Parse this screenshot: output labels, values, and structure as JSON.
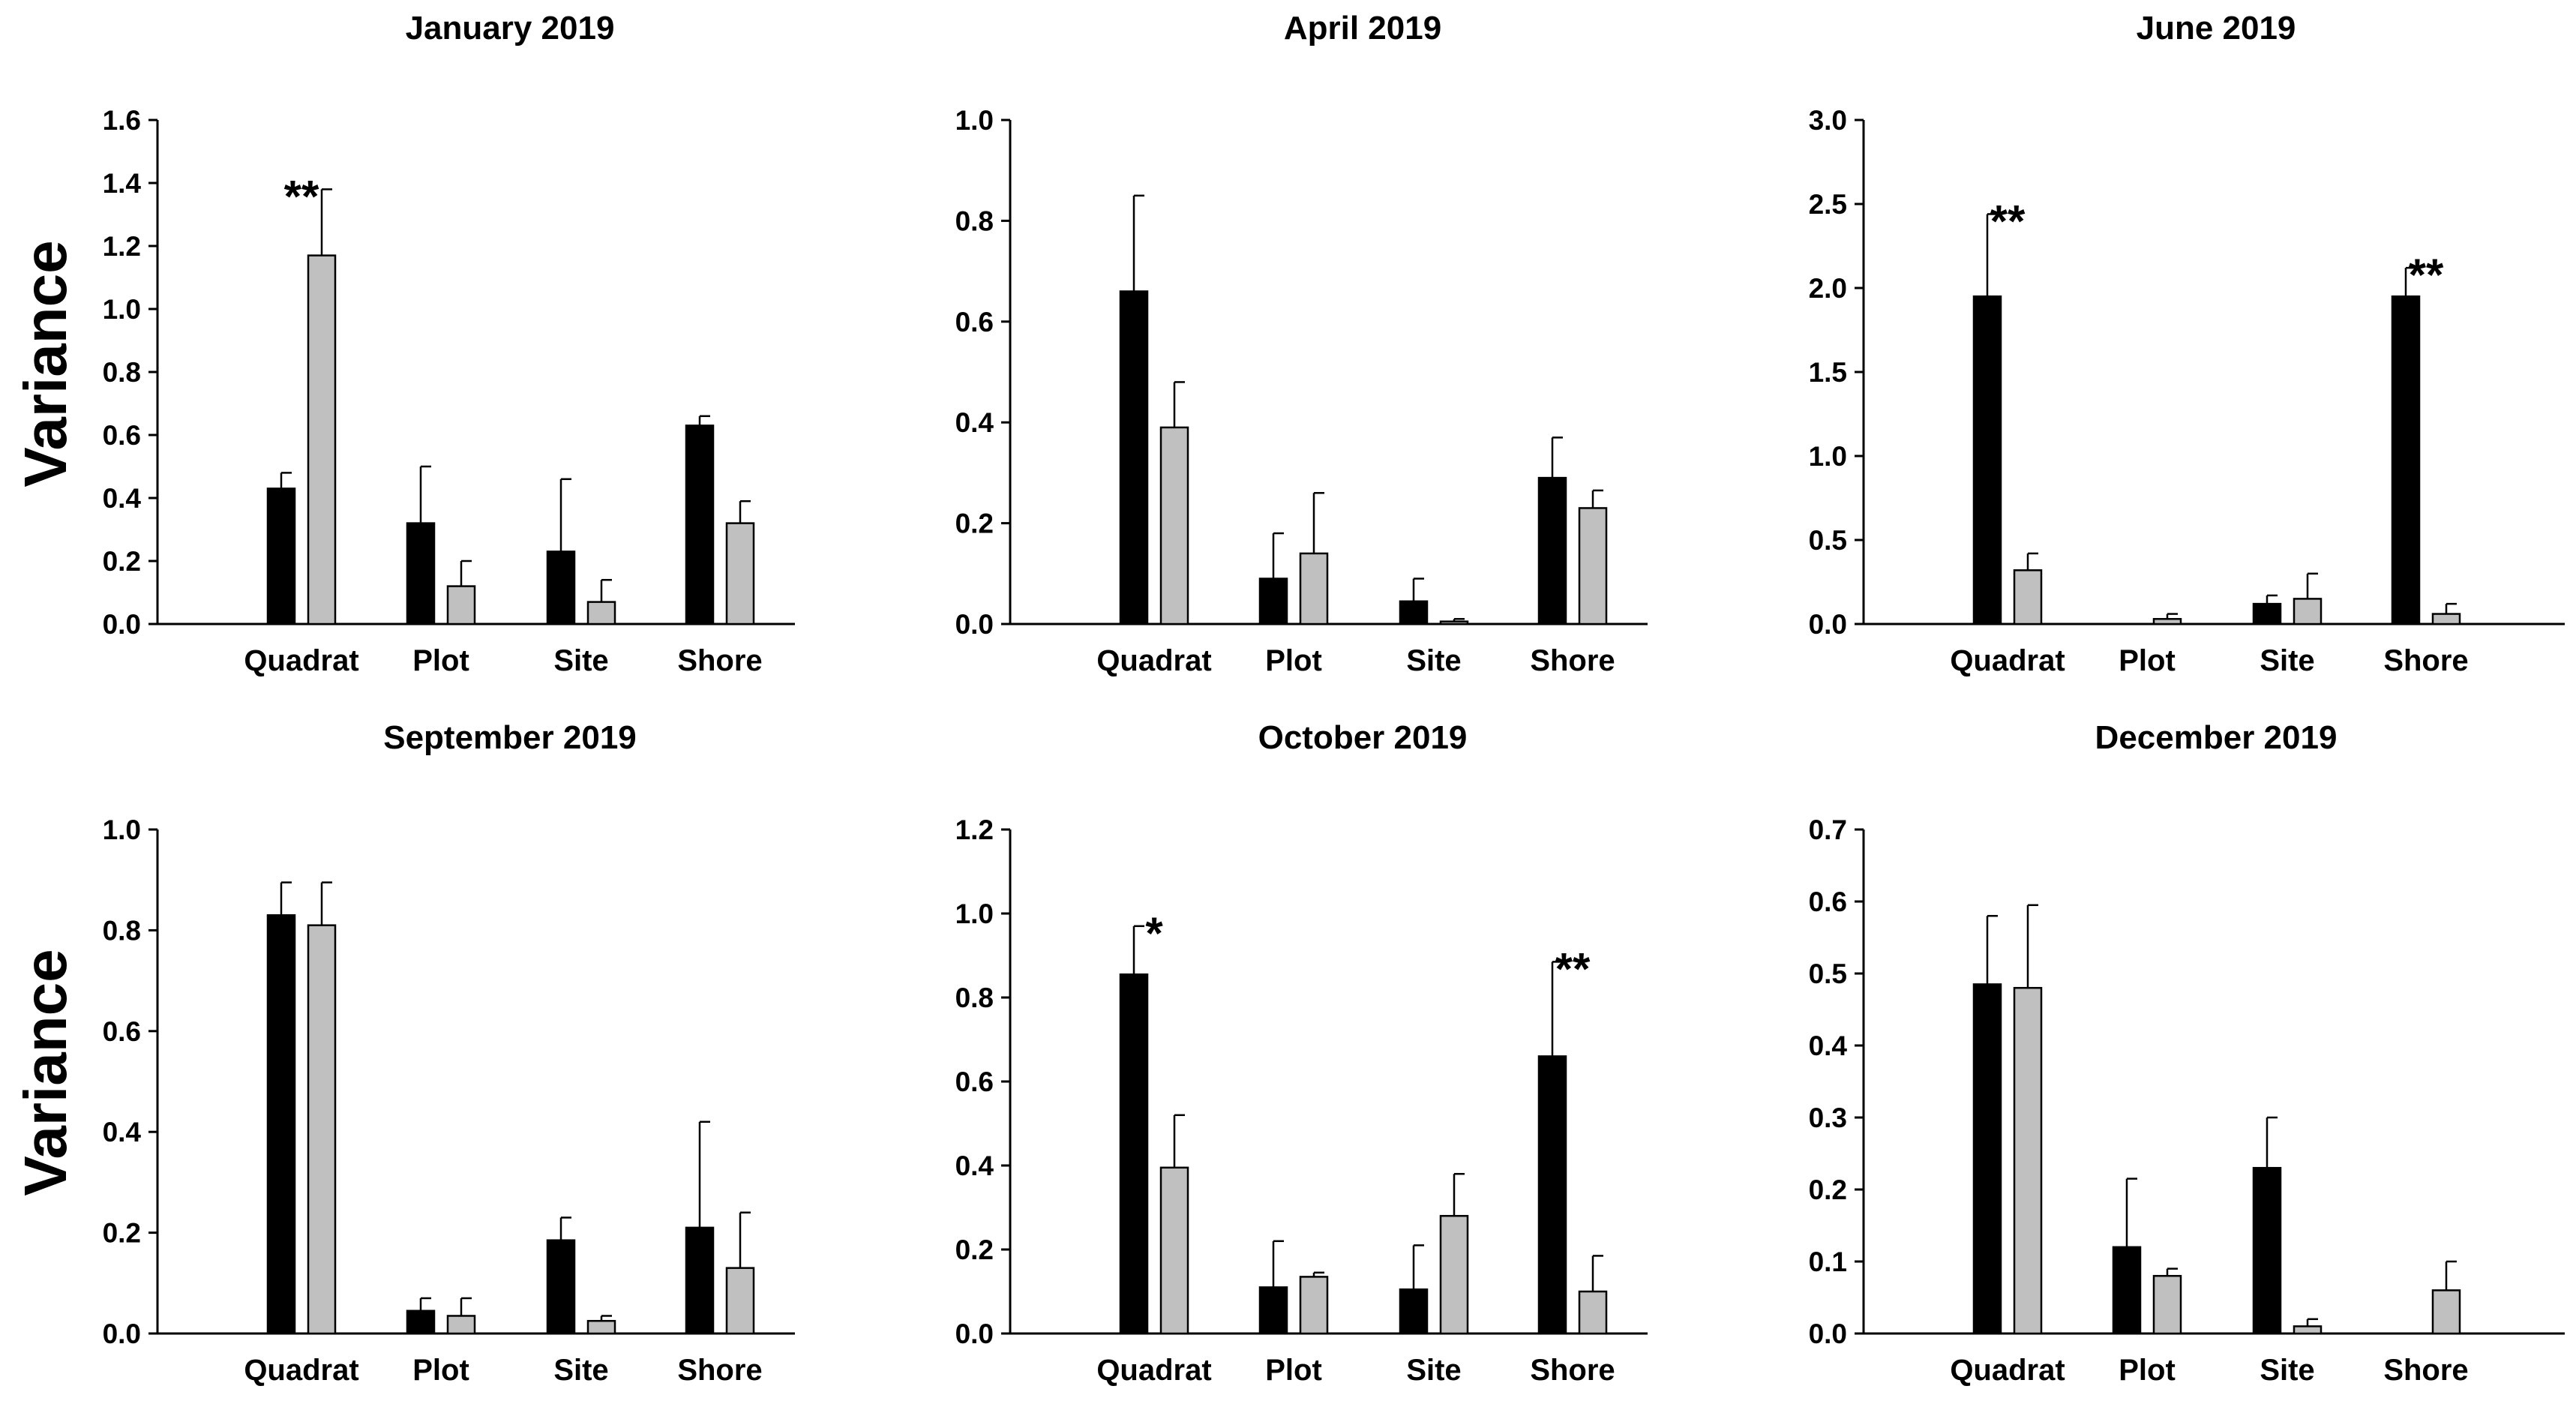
{
  "series_colors": {
    "black": "#000000",
    "grey": "#c0c0c0"
  },
  "chart_data": [
    {
      "type": "bar",
      "title": "January 2019",
      "ylabel": "Variance",
      "categories": [
        "Quadrat",
        "Plot",
        "Site",
        "Shore"
      ],
      "yticks": [
        "0.0",
        "0.2",
        "0.4",
        "0.6",
        "0.8",
        "1.0",
        "1.2",
        "1.4",
        "1.6"
      ],
      "ylim": [
        0,
        1.6
      ],
      "series": [
        {
          "name": "black",
          "values": [
            0.43,
            0.32,
            0.23,
            0.63
          ],
          "errors": [
            0.05,
            0.18,
            0.23,
            0.03
          ]
        },
        {
          "name": "grey",
          "values": [
            1.17,
            0.12,
            0.07,
            0.32
          ],
          "errors": [
            0.21,
            0.08,
            0.07,
            0.07
          ]
        }
      ],
      "annotations": [
        {
          "text": "**",
          "category": 0
        }
      ]
    },
    {
      "type": "bar",
      "title": "April 2019",
      "ylabel": "",
      "categories": [
        "Quadrat",
        "Plot",
        "Site",
        "Shore"
      ],
      "yticks": [
        "0.0",
        "0.2",
        "0.4",
        "0.6",
        "0.8",
        "1.0"
      ],
      "ylim": [
        0,
        1.0
      ],
      "series": [
        {
          "name": "black",
          "values": [
            0.66,
            0.09,
            0.045,
            0.29
          ],
          "errors": [
            0.19,
            0.09,
            0.045,
            0.08
          ]
        },
        {
          "name": "grey",
          "values": [
            0.39,
            0.14,
            0.005,
            0.23
          ],
          "errors": [
            0.09,
            0.12,
            0.005,
            0.035
          ]
        }
      ],
      "annotations": []
    },
    {
      "type": "bar",
      "title": "June 2019",
      "ylabel": "",
      "categories": [
        "Quadrat",
        "Plot",
        "Site",
        "Shore"
      ],
      "yticks": [
        "0.0",
        "0.5",
        "1.0",
        "1.5",
        "2.0",
        "2.5",
        "3.0"
      ],
      "ylim": [
        0,
        3.0
      ],
      "series": [
        {
          "name": "black",
          "values": [
            1.95,
            0.0,
            0.12,
            1.95
          ],
          "errors": [
            0.49,
            0.0,
            0.05,
            0.17
          ]
        },
        {
          "name": "grey",
          "values": [
            0.32,
            0.03,
            0.15,
            0.06
          ],
          "errors": [
            0.1,
            0.03,
            0.15,
            0.06
          ]
        }
      ],
      "annotations": [
        {
          "text": "**",
          "category": 0
        },
        {
          "text": "**",
          "category": 3
        }
      ]
    },
    {
      "type": "bar",
      "title": "September 2019",
      "ylabel": "Variance",
      "categories": [
        "Quadrat",
        "Plot",
        "Site",
        "Shore"
      ],
      "yticks": [
        "0.0",
        "0.2",
        "0.4",
        "0.6",
        "0.8",
        "1.0"
      ],
      "ylim": [
        0,
        1.0
      ],
      "series": [
        {
          "name": "black",
          "values": [
            0.83,
            0.045,
            0.185,
            0.21
          ],
          "errors": [
            0.065,
            0.025,
            0.045,
            0.21
          ]
        },
        {
          "name": "grey",
          "values": [
            0.81,
            0.035,
            0.025,
            0.13
          ],
          "errors": [
            0.085,
            0.035,
            0.01,
            0.11
          ]
        }
      ],
      "annotations": []
    },
    {
      "type": "bar",
      "title": "October 2019",
      "ylabel": "",
      "categories": [
        "Quadrat",
        "Plot",
        "Site",
        "Shore"
      ],
      "yticks": [
        "0.0",
        "0.2",
        "0.4",
        "0.6",
        "0.8",
        "1.0",
        "1.2"
      ],
      "ylim": [
        0,
        1.2
      ],
      "series": [
        {
          "name": "black",
          "values": [
            0.855,
            0.11,
            0.105,
            0.66
          ],
          "errors": [
            0.115,
            0.11,
            0.105,
            0.225
          ]
        },
        {
          "name": "grey",
          "values": [
            0.395,
            0.135,
            0.28,
            0.1
          ],
          "errors": [
            0.125,
            0.01,
            0.1,
            0.085
          ]
        }
      ],
      "annotations": [
        {
          "text": "*",
          "category": 0
        },
        {
          "text": "**",
          "category": 3
        }
      ]
    },
    {
      "type": "bar",
      "title": "December 2019",
      "ylabel": "",
      "categories": [
        "Quadrat",
        "Plot",
        "Site",
        "Shore"
      ],
      "yticks": [
        "0.0",
        "0.1",
        "0.2",
        "0.3",
        "0.4",
        "0.5",
        "0.6",
        "0.7"
      ],
      "ylim": [
        0,
        0.7
      ],
      "series": [
        {
          "name": "black",
          "values": [
            0.485,
            0.12,
            0.23,
            0.0
          ],
          "errors": [
            0.095,
            0.095,
            0.07,
            0.0
          ]
        },
        {
          "name": "grey",
          "values": [
            0.48,
            0.08,
            0.01,
            0.06
          ],
          "errors": [
            0.115,
            0.01,
            0.01,
            0.04
          ]
        }
      ],
      "annotations": []
    }
  ]
}
